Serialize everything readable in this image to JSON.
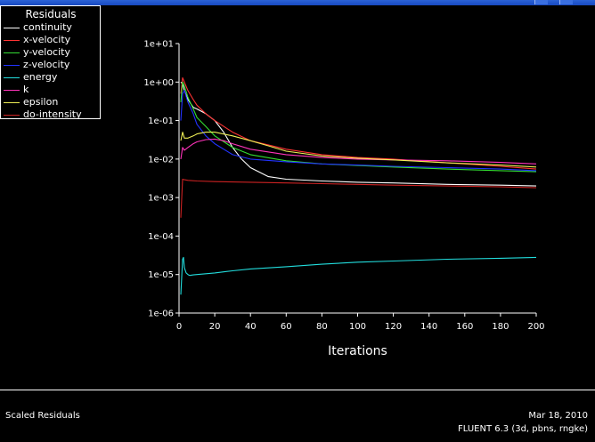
{
  "window": {
    "title": ""
  },
  "chart_data": {
    "type": "line",
    "title": "",
    "xlabel": "Iterations",
    "ylabel": "",
    "y_scale": "log",
    "xlim": [
      0,
      200
    ],
    "ylim": [
      1e-06,
      10
    ],
    "x_ticks": [
      "0",
      "20",
      "40",
      "60",
      "80",
      "100",
      "120",
      "140",
      "160",
      "180",
      "200"
    ],
    "y_ticks": [
      "1e-06",
      "1e-05",
      "1e-04",
      "1e-03",
      "1e-02",
      "1e-01",
      "1e+00",
      "1e+01"
    ],
    "legend": {
      "title": "Residuals",
      "placement": "top-left"
    },
    "series": [
      {
        "name": "continuity",
        "color": "#ffffff",
        "x": [
          1,
          2,
          3,
          5,
          8,
          10,
          15,
          20,
          25,
          30,
          35,
          40,
          50,
          60,
          80,
          100,
          120,
          150,
          180,
          200
        ],
        "y": [
          1.0,
          0.9,
          0.6,
          0.35,
          0.22,
          0.2,
          0.15,
          0.1,
          0.05,
          0.02,
          0.01,
          0.006,
          0.0035,
          0.003,
          0.0027,
          0.0025,
          0.0024,
          0.0022,
          0.0021,
          0.002
        ]
      },
      {
        "name": "x-velocity",
        "color": "#ff3333",
        "x": [
          1,
          2,
          3,
          5,
          8,
          10,
          15,
          20,
          30,
          40,
          60,
          80,
          100,
          120,
          150,
          180,
          200
        ],
        "y": [
          0.5,
          1.3,
          1.0,
          0.6,
          0.35,
          0.25,
          0.15,
          0.1,
          0.05,
          0.03,
          0.018,
          0.013,
          0.011,
          0.01,
          0.008,
          0.0065,
          0.0055
        ]
      },
      {
        "name": "y-velocity",
        "color": "#33dd33",
        "x": [
          1,
          2,
          3,
          5,
          8,
          10,
          15,
          20,
          30,
          40,
          60,
          80,
          100,
          120,
          150,
          180,
          200
        ],
        "y": [
          0.3,
          1.0,
          0.8,
          0.4,
          0.2,
          0.12,
          0.07,
          0.04,
          0.02,
          0.013,
          0.009,
          0.0075,
          0.0068,
          0.0062,
          0.0055,
          0.005,
          0.0047
        ]
      },
      {
        "name": "z-velocity",
        "color": "#2233ff",
        "x": [
          1,
          2,
          3,
          5,
          8,
          10,
          15,
          20,
          30,
          40,
          60,
          80,
          100,
          120,
          150,
          180,
          200
        ],
        "y": [
          0.1,
          0.5,
          0.6,
          0.3,
          0.15,
          0.08,
          0.04,
          0.025,
          0.013,
          0.01,
          0.0085,
          0.0075,
          0.007,
          0.0065,
          0.006,
          0.0055,
          0.005
        ]
      },
      {
        "name": "energy",
        "color": "#22dddd",
        "x": [
          1,
          2,
          2.5,
          3,
          4,
          5,
          6,
          8,
          10,
          15,
          20,
          30,
          40,
          60,
          80,
          100,
          120,
          150,
          180,
          200
        ],
        "y": [
          3e-06,
          2.5e-05,
          2.8e-05,
          1.5e-05,
          1.1e-05,
          1e-05,
          9.5e-06,
          9.8e-06,
          1e-05,
          1.05e-05,
          1.1e-05,
          1.25e-05,
          1.4e-05,
          1.6e-05,
          1.85e-05,
          2.1e-05,
          2.25e-05,
          2.5e-05,
          2.65e-05,
          2.8e-05
        ]
      },
      {
        "name": "k",
        "color": "#ff33bb",
        "x": [
          1,
          2,
          3,
          5,
          8,
          10,
          15,
          20,
          25,
          30,
          40,
          60,
          80,
          100,
          120,
          150,
          180,
          200
        ],
        "y": [
          0.01,
          0.02,
          0.017,
          0.02,
          0.025,
          0.028,
          0.032,
          0.033,
          0.03,
          0.025,
          0.018,
          0.013,
          0.011,
          0.01,
          0.0095,
          0.009,
          0.0082,
          0.0075
        ]
      },
      {
        "name": "epsilon",
        "color": "#eeee55",
        "x": [
          1,
          2,
          3,
          5,
          8,
          10,
          15,
          20,
          30,
          40,
          50,
          60,
          80,
          100,
          120,
          150,
          180,
          200
        ],
        "y": [
          0.03,
          0.05,
          0.035,
          0.035,
          0.04,
          0.045,
          0.05,
          0.05,
          0.04,
          0.03,
          0.022,
          0.016,
          0.012,
          0.0105,
          0.0095,
          0.008,
          0.007,
          0.0062
        ]
      },
      {
        "name": "do-intensity",
        "color": "#cc2222",
        "x": [
          1,
          2,
          3,
          5,
          10,
          20,
          40,
          60,
          80,
          100,
          120,
          150,
          180,
          200
        ],
        "y": [
          0.0003,
          0.003,
          0.0029,
          0.0028,
          0.0027,
          0.0026,
          0.0025,
          0.0024,
          0.0023,
          0.0022,
          0.0021,
          0.002,
          0.0019,
          0.0018
        ]
      }
    ]
  },
  "footer": {
    "left_label": "Scaled Residuals",
    "date": "Mar 18, 2010",
    "version": "FLUENT 6.3 (3d, pbns, rngke)"
  }
}
